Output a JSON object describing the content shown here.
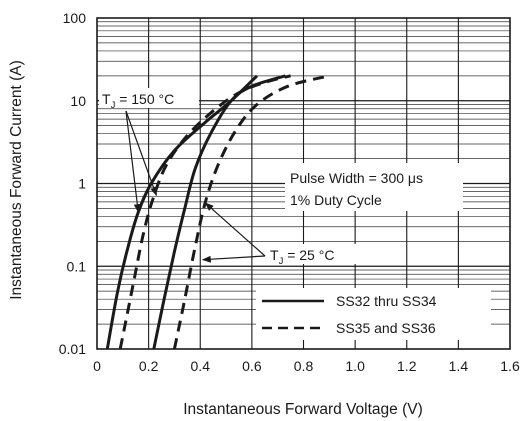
{
  "chart_data": {
    "type": "line",
    "xlabel": "Instantaneous Forward Voltage (V)",
    "ylabel": "Instantaneous Forward Current (A)",
    "xlim": [
      0,
      1.6
    ],
    "ylim": [
      0.01,
      100
    ],
    "y_scale": "log",
    "grid": true,
    "x_ticks": [
      "0",
      "0.2",
      "0.4",
      "0.6",
      "0.8",
      "1.0",
      "1.2",
      "1.4",
      "1.6"
    ],
    "y_ticks": [
      "0.01",
      "0.1",
      "1",
      "10",
      "100"
    ],
    "legend": {
      "placement": "bottom-right",
      "entries": [
        {
          "label": "SS32 thru SS34",
          "style": "solid"
        },
        {
          "label": "SS35 and SS36",
          "style": "dashed"
        }
      ]
    },
    "annotations": {
      "tj150": {
        "prefix": "T",
        "sub": "J",
        "suffix": " = 150 °C"
      },
      "tj25": {
        "prefix": "T",
        "sub": "J",
        "suffix": " = 25 °C"
      },
      "pulse_width": "Pulse Width = 300 μs",
      "duty_cycle": "1% Duty Cycle"
    },
    "series": [
      {
        "style": "solid",
        "points": [
          [
            0.04,
            0.01
          ],
          [
            0.08,
            0.05
          ],
          [
            0.12,
            0.17
          ],
          [
            0.16,
            0.45
          ],
          [
            0.21,
            1.0
          ],
          [
            0.3,
            2.5
          ],
          [
            0.42,
            5.5
          ],
          [
            0.52,
            10.0
          ],
          [
            0.62,
            20.0
          ]
        ]
      },
      {
        "style": "solid",
        "points": [
          [
            0.22,
            0.01
          ],
          [
            0.26,
            0.04
          ],
          [
            0.3,
            0.15
          ],
          [
            0.34,
            0.5
          ],
          [
            0.38,
            1.5
          ],
          [
            0.44,
            4.0
          ],
          [
            0.52,
            10.0
          ],
          [
            0.6,
            15.0
          ],
          [
            0.73,
            20.0
          ]
        ]
      },
      {
        "style": "dashed",
        "points": [
          [
            0.09,
            0.01
          ],
          [
            0.14,
            0.06
          ],
          [
            0.18,
            0.25
          ],
          [
            0.22,
            0.7
          ],
          [
            0.27,
            1.7
          ],
          [
            0.35,
            3.8
          ],
          [
            0.46,
            8.0
          ],
          [
            0.56,
            13.0
          ],
          [
            0.66,
            17.0
          ],
          [
            0.75,
            20.0
          ]
        ]
      },
      {
        "style": "dashed",
        "points": [
          [
            0.3,
            0.01
          ],
          [
            0.34,
            0.04
          ],
          [
            0.38,
            0.17
          ],
          [
            0.42,
            0.6
          ],
          [
            0.47,
            1.7
          ],
          [
            0.54,
            4.5
          ],
          [
            0.62,
            9.0
          ],
          [
            0.74,
            15.0
          ],
          [
            0.9,
            20.0
          ]
        ]
      }
    ]
  }
}
